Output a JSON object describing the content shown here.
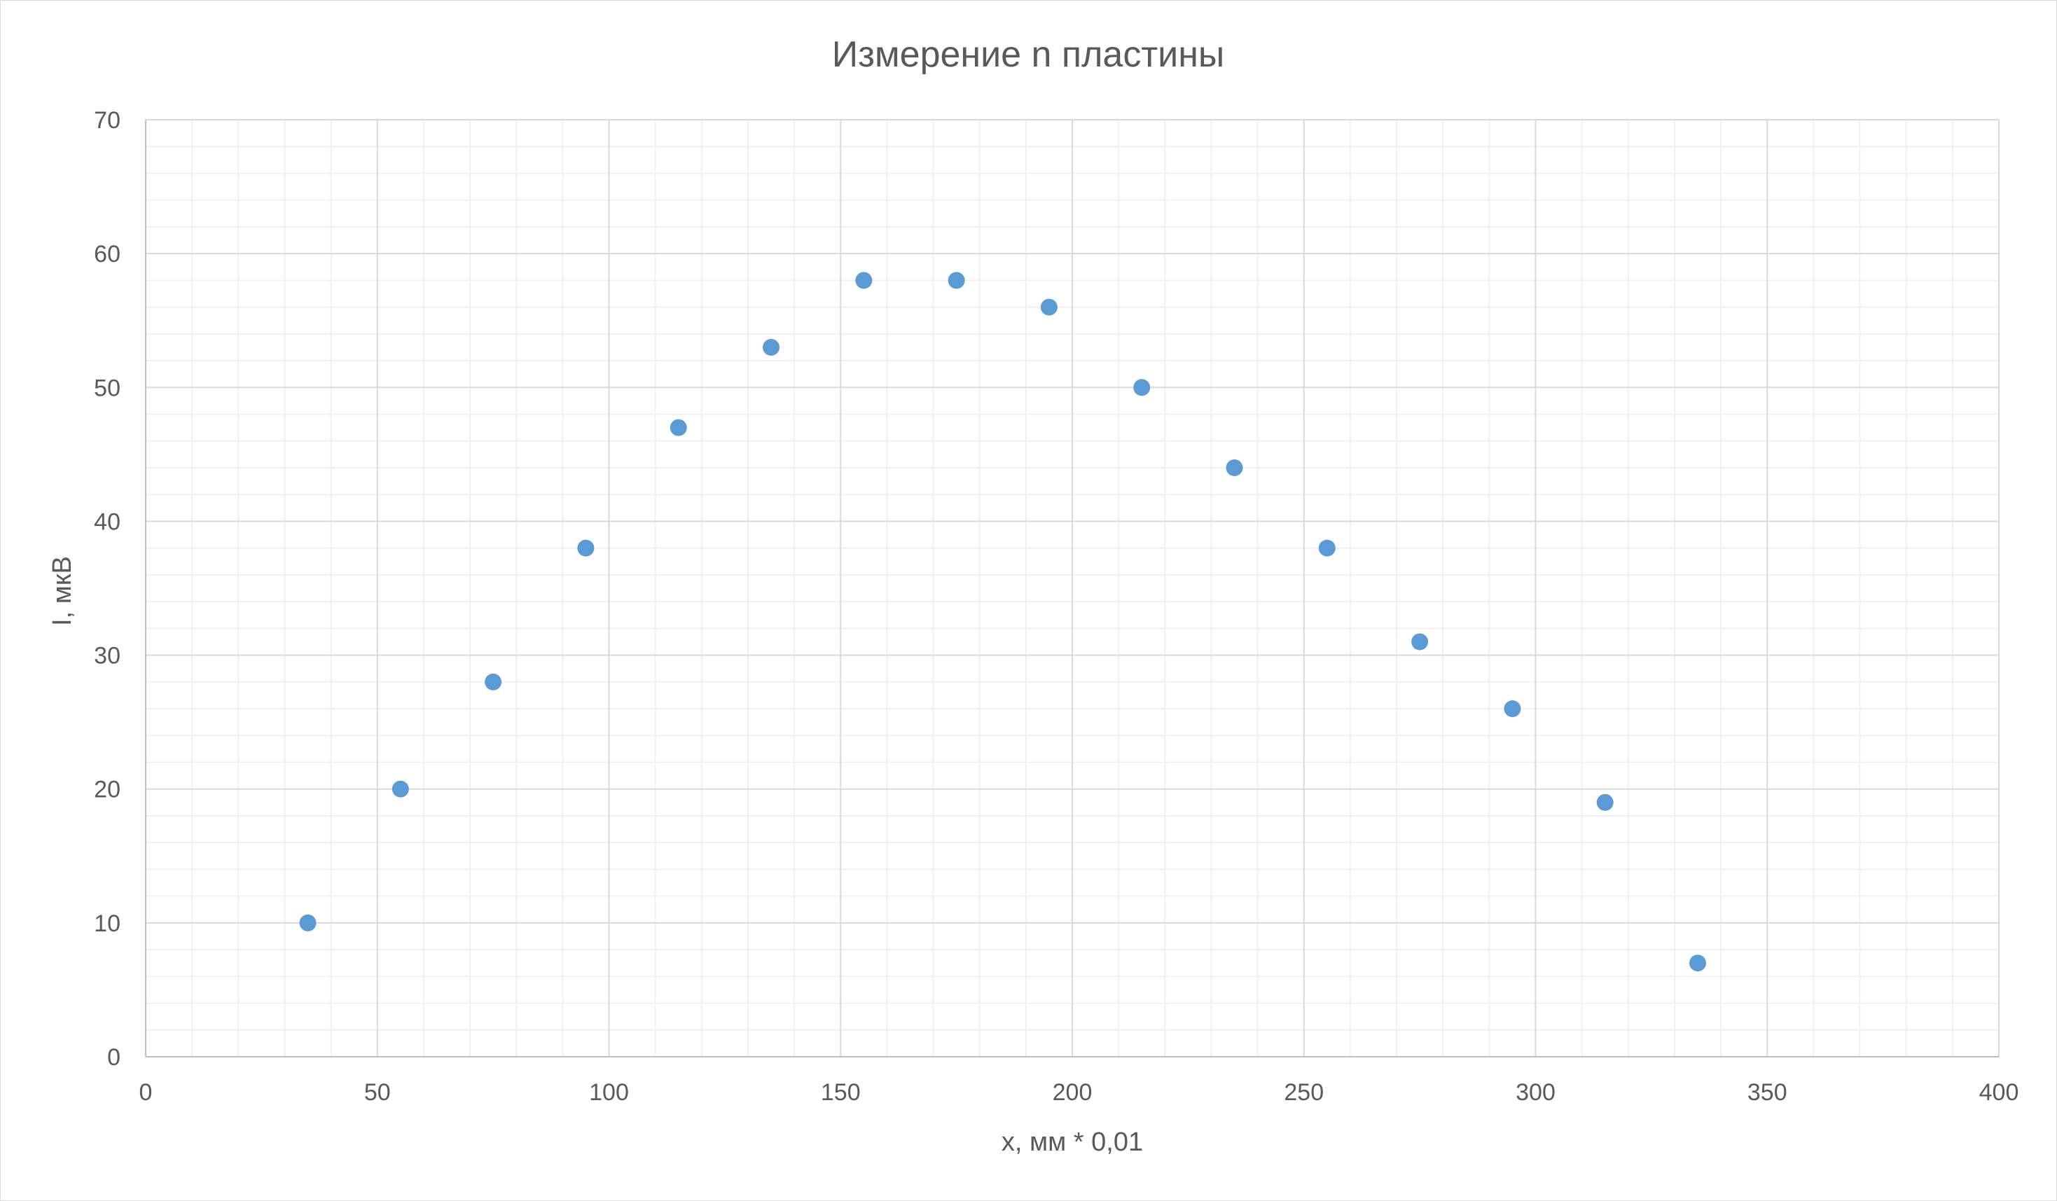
{
  "chart_data": {
    "type": "scatter",
    "title": "Измерение n пластины",
    "xlabel": "x, мм * 0,01",
    "ylabel": "I, мкВ",
    "xlim": [
      0,
      400
    ],
    "ylim": [
      0,
      70
    ],
    "x_major_step": 50,
    "x_minor_step": 10,
    "y_major_step": 10,
    "y_minor_step": 2,
    "x_ticks": [
      "0",
      "50",
      "100",
      "150",
      "200",
      "250",
      "300",
      "350",
      "400"
    ],
    "y_ticks": [
      "0",
      "10",
      "20",
      "30",
      "40",
      "50",
      "60",
      "70"
    ],
    "grid": true,
    "legend": "none",
    "marker_color": "#5b9bd5",
    "series": [
      {
        "x": [
          35,
          55,
          75,
          95,
          115,
          135,
          155,
          175,
          195,
          215,
          235,
          255,
          275,
          295,
          315,
          335
        ],
        "y": [
          10,
          20,
          28,
          38,
          47,
          53,
          58,
          58,
          56,
          50,
          44,
          38,
          31,
          26,
          19,
          7
        ]
      }
    ]
  }
}
